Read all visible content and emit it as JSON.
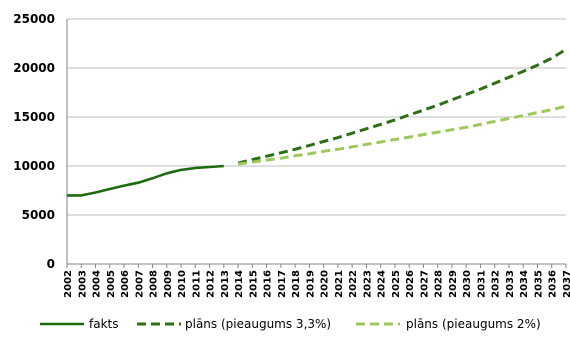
{
  "chart_data": {
    "type": "line",
    "title": "",
    "xlabel": "",
    "ylabel": "",
    "ylim": [
      0,
      25000
    ],
    "yticks": [
      0,
      5000,
      10000,
      15000,
      20000,
      25000
    ],
    "grid": true,
    "legend_position": "bottom",
    "x": [
      2002,
      2003,
      2004,
      2005,
      2006,
      2007,
      2008,
      2009,
      2010,
      2011,
      2012,
      2013,
      2014,
      2015,
      2016,
      2017,
      2018,
      2019,
      2020,
      2021,
      2022,
      2023,
      2024,
      2025,
      2026,
      2027,
      2028,
      2029,
      2030,
      2031,
      2032,
      2033,
      2034,
      2035,
      2036,
      2037
    ],
    "series": [
      {
        "name": "fakts",
        "style": "solid",
        "color": "#1e6b0f",
        "x": [
          2002,
          2003,
          2004,
          2005,
          2006,
          2007,
          2008,
          2009,
          2010,
          2011,
          2012,
          2013
        ],
        "values": [
          7000,
          7000,
          7300,
          7650,
          8000,
          8300,
          8750,
          9250,
          9600,
          9800,
          9900,
          10000
        ]
      },
      {
        "name": "plāns (pieaugums 3,3%)",
        "style": "dash",
        "color": "#2e6f13",
        "x": [
          2014,
          2015,
          2016,
          2017,
          2018,
          2019,
          2020,
          2021,
          2022,
          2023,
          2024,
          2025,
          2026,
          2027,
          2028,
          2029,
          2030,
          2031,
          2032,
          2033,
          2034,
          2035,
          2036,
          2037
        ],
        "values": [
          10300,
          10650,
          11000,
          11350,
          11700,
          12100,
          12500,
          12900,
          13350,
          13800,
          14250,
          14700,
          15200,
          15700,
          16200,
          16750,
          17300,
          17850,
          18450,
          19050,
          19650,
          20300,
          21000,
          21900
        ]
      },
      {
        "name": "plāns (pieaugums 2%)",
        "style": "dash",
        "color": "#9cc95a",
        "x": [
          2014,
          2015,
          2016,
          2017,
          2018,
          2019,
          2020,
          2021,
          2022,
          2023,
          2024,
          2025,
          2026,
          2027,
          2028,
          2029,
          2030,
          2031,
          2032,
          2033,
          2034,
          2035,
          2036,
          2037
        ],
        "values": [
          10200,
          10400,
          10600,
          10800,
          11050,
          11250,
          11500,
          11700,
          11950,
          12200,
          12450,
          12700,
          12950,
          13200,
          13450,
          13700,
          13950,
          14250,
          14550,
          14850,
          15150,
          15450,
          15750,
          16100
        ]
      }
    ]
  }
}
